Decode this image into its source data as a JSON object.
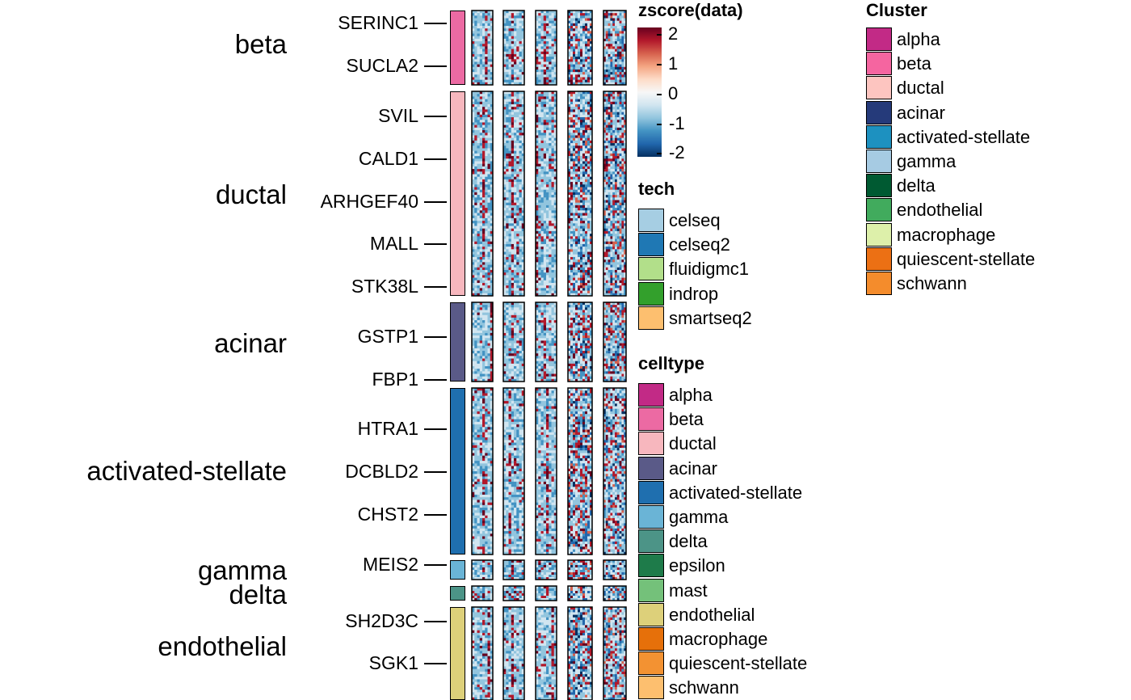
{
  "chart_data": {
    "type": "heatmap",
    "description_visible": "Clustered heatmap of z-scored gene expression across 6 column slices with row annotation bar",
    "row_groups": [
      {
        "label": "beta",
        "color": "#EC6AA3",
        "genes": [
          "SERINC1",
          "SUCLA2"
        ]
      },
      {
        "label": "ductal",
        "color": "#F7B7BE",
        "genes": [
          "SVIL",
          "CALD1",
          "ARHGEF40",
          "MALL",
          "STK38L"
        ]
      },
      {
        "label": "acinar",
        "color": "#5A5A88",
        "genes": [
          "GSTP1",
          "FBP1"
        ]
      },
      {
        "label": "activated-stellate",
        "color": "#1F6FAF",
        "genes": [
          "HTRA1",
          "DCBLD2",
          "CHST2"
        ]
      },
      {
        "label": "gamma",
        "color": "#6AB4D6",
        "genes": [
          "MEIS2"
        ]
      },
      {
        "label": "delta",
        "color": "#4C9487",
        "genes": []
      },
      {
        "label": "endothelial",
        "color": "#DDD07A",
        "genes": [
          "SH2D3C",
          "SGK1"
        ]
      }
    ],
    "column_slices": 6,
    "colorbar": {
      "title": "zscore(data)",
      "ticks": [
        "2",
        "1",
        "0",
        "-1",
        "-2"
      ],
      "range": [
        -2,
        2
      ],
      "colors": [
        "#67001F",
        "#B2182B",
        "#D6604D",
        "#F4A582",
        "#FDDBC7",
        "#F7F7F7",
        "#D1E5F0",
        "#92C5DE",
        "#4393C3",
        "#2166AC",
        "#053061"
      ]
    },
    "legends": [
      {
        "title": "tech",
        "items": [
          {
            "label": "celseq",
            "color": "#A6CEE3"
          },
          {
            "label": "celseq2",
            "color": "#1F78B4"
          },
          {
            "label": "fluidigmc1",
            "color": "#B2DF8A"
          },
          {
            "label": "indrop",
            "color": "#33A02C"
          },
          {
            "label": "smartseq2",
            "color": "#FDBF6F"
          }
        ]
      },
      {
        "title": "celltype",
        "items": [
          {
            "label": "alpha",
            "color": "#C22A86"
          },
          {
            "label": "beta",
            "color": "#EC6AA3"
          },
          {
            "label": "ductal",
            "color": "#F7B7BE"
          },
          {
            "label": "acinar",
            "color": "#5A5A88"
          },
          {
            "label": "activated-stellate",
            "color": "#1F6FAF"
          },
          {
            "label": "gamma",
            "color": "#6AB4D6"
          },
          {
            "label": "delta",
            "color": "#4C9487"
          },
          {
            "label": "epsilon",
            "color": "#1E7B4A"
          },
          {
            "label": "mast",
            "color": "#74C17A"
          },
          {
            "label": "endothelial",
            "color": "#DDD07A"
          },
          {
            "label": "macrophage",
            "color": "#E6700A"
          },
          {
            "label": "quiescent-stellate",
            "color": "#F39232"
          },
          {
            "label": "schwann",
            "color": "#FDBF6F"
          }
        ]
      },
      {
        "title": "Cluster",
        "items": [
          {
            "label": "alpha",
            "color": "#C22A86"
          },
          {
            "label": "beta",
            "color": "#F565A0"
          },
          {
            "label": "ductal",
            "color": "#FDC5C0"
          },
          {
            "label": "acinar",
            "color": "#253A7A"
          },
          {
            "label": "activated-stellate",
            "color": "#1D91C0"
          },
          {
            "label": "gamma",
            "color": "#A6CBE3"
          },
          {
            "label": "delta",
            "color": "#005A32"
          },
          {
            "label": "endothelial",
            "color": "#41AB5D"
          },
          {
            "label": "macrophage",
            "color": "#DDF0AA"
          },
          {
            "label": "quiescent-stellate",
            "color": "#EC7014"
          },
          {
            "label": "schwann",
            "color": "#F48C2C"
          }
        ]
      }
    ]
  }
}
